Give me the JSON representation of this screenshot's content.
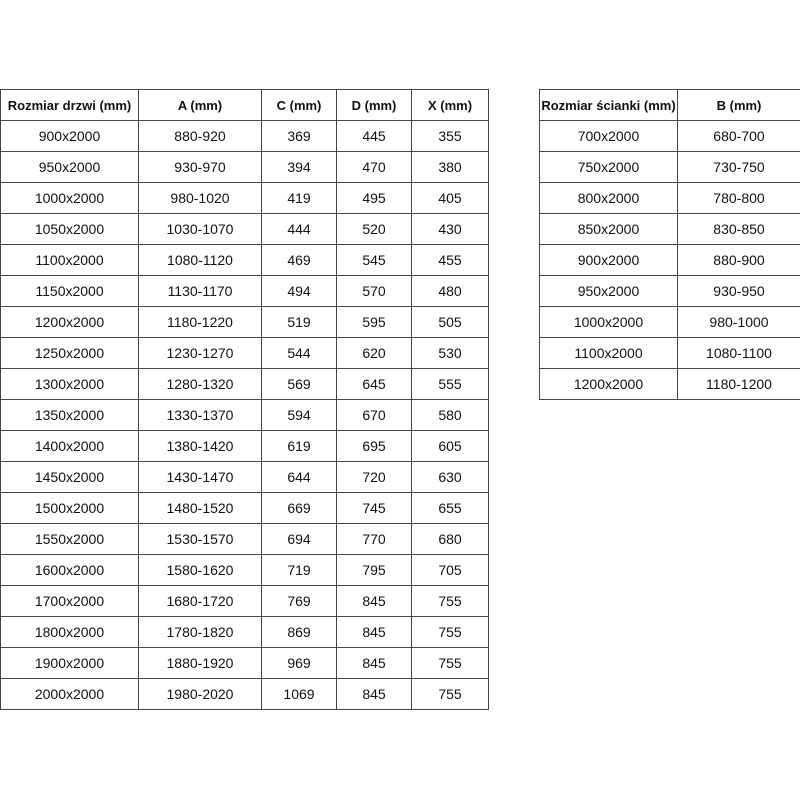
{
  "door_table": {
    "headers": [
      "Rozmiar drzwi (mm)",
      "A (mm)",
      "C (mm)",
      "D (mm)",
      "X (mm)"
    ],
    "rows": [
      [
        "900x2000",
        "880-920",
        "369",
        "445",
        "355"
      ],
      [
        "950x2000",
        "930-970",
        "394",
        "470",
        "380"
      ],
      [
        "1000x2000",
        "980-1020",
        "419",
        "495",
        "405"
      ],
      [
        "1050x2000",
        "1030-1070",
        "444",
        "520",
        "430"
      ],
      [
        "1100x2000",
        "1080-1120",
        "469",
        "545",
        "455"
      ],
      [
        "1150x2000",
        "1130-1170",
        "494",
        "570",
        "480"
      ],
      [
        "1200x2000",
        "1180-1220",
        "519",
        "595",
        "505"
      ],
      [
        "1250x2000",
        "1230-1270",
        "544",
        "620",
        "530"
      ],
      [
        "1300x2000",
        "1280-1320",
        "569",
        "645",
        "555"
      ],
      [
        "1350x2000",
        "1330-1370",
        "594",
        "670",
        "580"
      ],
      [
        "1400x2000",
        "1380-1420",
        "619",
        "695",
        "605"
      ],
      [
        "1450x2000",
        "1430-1470",
        "644",
        "720",
        "630"
      ],
      [
        "1500x2000",
        "1480-1520",
        "669",
        "745",
        "655"
      ],
      [
        "1550x2000",
        "1530-1570",
        "694",
        "770",
        "680"
      ],
      [
        "1600x2000",
        "1580-1620",
        "719",
        "795",
        "705"
      ],
      [
        "1700x2000",
        "1680-1720",
        "769",
        "845",
        "755"
      ],
      [
        "1800x2000",
        "1780-1820",
        "869",
        "845",
        "755"
      ],
      [
        "1900x2000",
        "1880-1920",
        "969",
        "845",
        "755"
      ],
      [
        "2000x2000",
        "1980-2020",
        "1069",
        "845",
        "755"
      ]
    ]
  },
  "wall_table": {
    "headers": [
      "Rozmiar ścianki (mm)",
      "B (mm)"
    ],
    "rows": [
      [
        "700x2000",
        "680-700"
      ],
      [
        "750x2000",
        "730-750"
      ],
      [
        "800x2000",
        "780-800"
      ],
      [
        "850x2000",
        "830-850"
      ],
      [
        "900x2000",
        "880-900"
      ],
      [
        "950x2000",
        "930-950"
      ],
      [
        "1000x2000",
        "980-1000"
      ],
      [
        "1100x2000",
        "1080-1100"
      ],
      [
        "1200x2000",
        "1180-1200"
      ]
    ]
  }
}
